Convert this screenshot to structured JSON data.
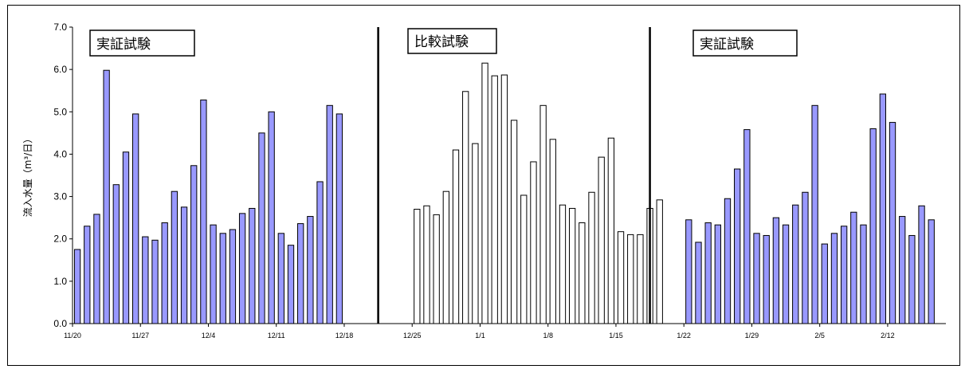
{
  "chart_data": {
    "type": "bar",
    "ylabel": "流入水量（m³/日）",
    "ylim": [
      0,
      7
    ],
    "yticks": [
      "0.0",
      "1.0",
      "2.0",
      "3.0",
      "4.0",
      "5.0",
      "6.0",
      "7.0"
    ],
    "xticks": [
      "11/20",
      "11/27",
      "12/4",
      "12/11",
      "12/18",
      "12/25",
      "1/1",
      "1/8",
      "1/15",
      "1/22",
      "1/29",
      "2/5",
      "2/12"
    ],
    "section_labels": [
      "実証試験",
      "比較試験",
      "実証試験"
    ],
    "series": [
      {
        "color": "#9999ff",
        "start_date": "11/20",
        "values": [
          1.75,
          2.3,
          2.58,
          5.98,
          3.28,
          4.05,
          4.95,
          2.05,
          1.97,
          2.38,
          3.12,
          2.75,
          3.73,
          5.28,
          2.33,
          2.13,
          2.22,
          2.6,
          2.72,
          4.5,
          5.0,
          2.13,
          1.85,
          2.36,
          2.53,
          3.35,
          5.15,
          4.95
        ]
      },
      {
        "color": "#ffffff",
        "start_date": "12/25",
        "values": [
          2.7,
          2.78,
          2.57,
          3.12,
          4.1,
          5.48,
          4.25,
          6.15,
          5.85,
          5.87,
          4.8,
          3.03,
          3.82,
          5.15,
          4.35,
          2.8,
          2.72,
          2.38,
          3.1,
          3.93,
          4.38,
          2.17,
          2.1,
          2.1,
          2.72,
          2.92
        ]
      },
      {
        "color": "#9999ff",
        "start_date": "1/22",
        "values": [
          2.45,
          1.92,
          2.38,
          2.33,
          2.95,
          3.65,
          4.58,
          2.13,
          2.08,
          2.5,
          2.33,
          2.8,
          3.1,
          5.15,
          1.88,
          2.13,
          2.3,
          2.63,
          2.33,
          4.6,
          5.42,
          4.75,
          2.53,
          2.08,
          2.78,
          2.45
        ]
      }
    ]
  }
}
